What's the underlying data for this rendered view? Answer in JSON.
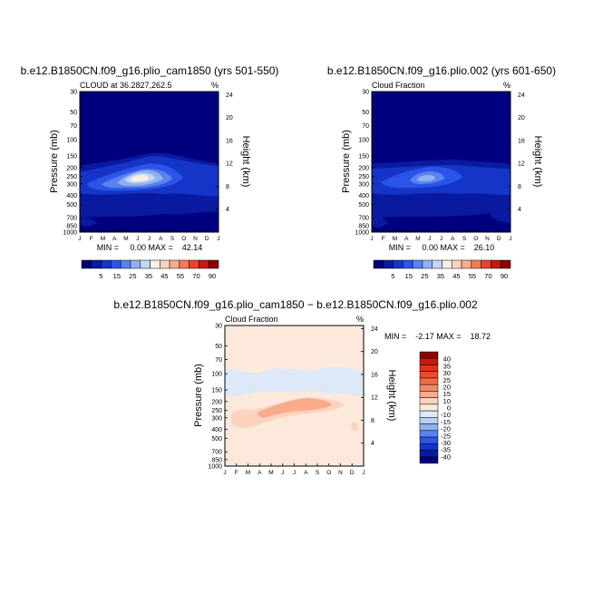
{
  "chart_data": [
    {
      "type": "heatmap",
      "title": "b.e12.B1850CN.f09_g16.plio_cam1850 (yrs 501-550)",
      "subtitle_left": "CLOUD at 36.2827,262.5",
      "subtitle_right": "%",
      "ylabel": "Pressure (mb)",
      "ylabel_right": "Height (km)",
      "x_ticks": [
        "J",
        "F",
        "M",
        "A",
        "M",
        "J",
        "J",
        "A",
        "S",
        "O",
        "N",
        "D",
        "J"
      ],
      "y_ticks": [
        "30",
        "50",
        "70",
        "100",
        "150",
        "200",
        "250",
        "300",
        "400",
        "500",
        "700",
        "850",
        "1000"
      ],
      "y_right_ticks": [
        "24",
        "20",
        "16",
        "12",
        "8",
        "4"
      ],
      "min_max": "MIN =     0.00 MAX =    42.14",
      "colorbar_labels": [
        "5",
        "15",
        "25",
        "35",
        "45",
        "55",
        "70",
        "90"
      ],
      "colorbar_colors": [
        "#00007f",
        "#0a1aa0",
        "#1535c8",
        "#2a55e8",
        "#5a82ef",
        "#8fb0f2",
        "#c2d6f7",
        "#f7eee5",
        "#fcd3bf",
        "#f9ab8b",
        "#f37a55",
        "#e3462a",
        "#c41a12",
        "#8b0000"
      ],
      "max_value": 42.14,
      "min_value": 0.0
    },
    {
      "type": "heatmap",
      "title": "b.e12.B1850CN.f09_g16.plio.002 (yrs 601-650)",
      "subtitle_left": "Cloud Fraction",
      "subtitle_right": "%",
      "ylabel": "Pressure (mb)",
      "ylabel_right": "Height (km)",
      "x_ticks": [
        "J",
        "F",
        "M",
        "A",
        "M",
        "J",
        "J",
        "A",
        "S",
        "O",
        "N",
        "D",
        "J"
      ],
      "y_ticks": [
        "30",
        "50",
        "70",
        "100",
        "150",
        "200",
        "250",
        "300",
        "400",
        "500",
        "700",
        "850",
        "1000"
      ],
      "y_right_ticks": [
        "24",
        "20",
        "16",
        "12",
        "8",
        "4"
      ],
      "min_max": "MIN =     0.00 MAX =    26.10",
      "colorbar_labels": [
        "5",
        "15",
        "25",
        "35",
        "45",
        "55",
        "70",
        "90"
      ],
      "max_value": 26.1,
      "min_value": 0.0
    },
    {
      "type": "heatmap",
      "title": "b.e12.B1850CN.f09_g16.plio_cam1850 − b.e12.B1850CN.f09_g16.plio.002",
      "subtitle_left": "Cloud Fraction",
      "subtitle_right": "%",
      "ylabel": "Pressure (mb)",
      "ylabel_right": "Height (km)",
      "x_ticks": [
        "J",
        "F",
        "M",
        "A",
        "M",
        "J",
        "J",
        "A",
        "S",
        "O",
        "N",
        "D",
        "J"
      ],
      "y_ticks": [
        "30",
        "50",
        "70",
        "100",
        "150",
        "200",
        "250",
        "300",
        "400",
        "500",
        "700",
        "850",
        "1000"
      ],
      "y_right_ticks": [
        "24",
        "20",
        "16",
        "12",
        "8",
        "4"
      ],
      "min_max": "MIN =    -2.17 MAX =    18.72",
      "colorbar_labels": [
        "40",
        "35",
        "30",
        "25",
        "20",
        "15",
        "10",
        "0",
        "-10",
        "-15",
        "-20",
        "-25",
        "-30",
        "-35",
        "-40"
      ],
      "colorbar_colors": [
        "#8b0000",
        "#c41a12",
        "#e0301c",
        "#f04a2a",
        "#f36a45",
        "#f68a65",
        "#f9ab8b",
        "#fcd3bf",
        "#fde9dc",
        "#dde8f8",
        "#b9cff4",
        "#8fb0f2",
        "#5a82ef",
        "#2a55e8",
        "#1535c8",
        "#0a1aa0",
        "#00007f"
      ],
      "max_value": 18.72,
      "min_value": -2.17
    }
  ]
}
